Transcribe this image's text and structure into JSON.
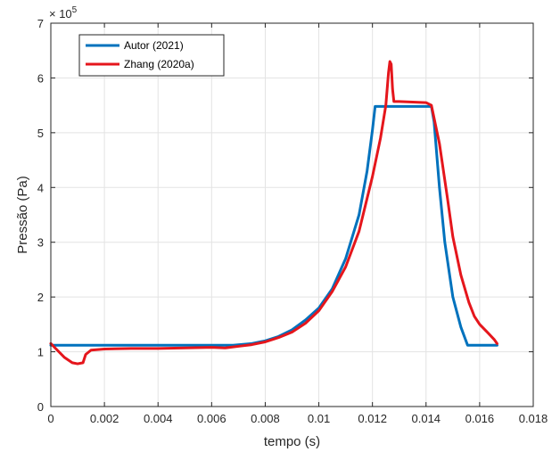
{
  "chart_data": {
    "type": "line",
    "xlabel": "tempo (s)",
    "ylabel": "Pressão (Pa)",
    "y_multiplier": "× 10",
    "y_multiplier_exp": "5",
    "xlim": [
      0,
      0.018
    ],
    "ylim": [
      0,
      7
    ],
    "x_ticks": [
      "0",
      "0.002",
      "0.004",
      "0.006",
      "0.008",
      "0.01",
      "0.012",
      "0.014",
      "0.016",
      "0.018"
    ],
    "y_ticks": [
      "0",
      "1",
      "2",
      "3",
      "4",
      "5",
      "6",
      "7"
    ],
    "grid": true,
    "legend_position": "top-left",
    "series": [
      {
        "name": "Autor (2021)",
        "color": "#0072BD",
        "points": [
          [
            0,
            1.12
          ],
          [
            0.002,
            1.12
          ],
          [
            0.004,
            1.12
          ],
          [
            0.006,
            1.12
          ],
          [
            0.0068,
            1.12
          ],
          [
            0.0075,
            1.15
          ],
          [
            0.008,
            1.2
          ],
          [
            0.0085,
            1.28
          ],
          [
            0.009,
            1.4
          ],
          [
            0.0095,
            1.58
          ],
          [
            0.01,
            1.8
          ],
          [
            0.0105,
            2.15
          ],
          [
            0.011,
            2.7
          ],
          [
            0.0115,
            3.5
          ],
          [
            0.0118,
            4.3
          ],
          [
            0.012,
            5.05
          ],
          [
            0.0121,
            5.48
          ],
          [
            0.0123,
            5.48
          ],
          [
            0.013,
            5.48
          ],
          [
            0.0138,
            5.48
          ],
          [
            0.0142,
            5.48
          ],
          [
            0.0143,
            5.2
          ],
          [
            0.0145,
            4.0
          ],
          [
            0.0147,
            3.0
          ],
          [
            0.015,
            2.0
          ],
          [
            0.0153,
            1.45
          ],
          [
            0.01555,
            1.12
          ],
          [
            0.0162,
            1.12
          ],
          [
            0.01665,
            1.12
          ]
        ]
      },
      {
        "name": "Zhang (2020a)",
        "color": "#E5161C",
        "points": [
          [
            0,
            1.15
          ],
          [
            0.0002,
            1.05
          ],
          [
            0.0005,
            0.9
          ],
          [
            0.0008,
            0.8
          ],
          [
            0.001,
            0.78
          ],
          [
            0.0012,
            0.8
          ],
          [
            0.0013,
            0.95
          ],
          [
            0.0015,
            1.03
          ],
          [
            0.002,
            1.05
          ],
          [
            0.003,
            1.06
          ],
          [
            0.004,
            1.06
          ],
          [
            0.005,
            1.07
          ],
          [
            0.006,
            1.08
          ],
          [
            0.0065,
            1.07
          ],
          [
            0.007,
            1.1
          ],
          [
            0.0075,
            1.13
          ],
          [
            0.008,
            1.18
          ],
          [
            0.0085,
            1.26
          ],
          [
            0.009,
            1.36
          ],
          [
            0.0095,
            1.52
          ],
          [
            0.01,
            1.75
          ],
          [
            0.0105,
            2.1
          ],
          [
            0.011,
            2.55
          ],
          [
            0.0115,
            3.2
          ],
          [
            0.012,
            4.2
          ],
          [
            0.0123,
            4.9
          ],
          [
            0.0125,
            5.5
          ],
          [
            0.0126,
            6.1
          ],
          [
            0.01265,
            6.3
          ],
          [
            0.0127,
            6.25
          ],
          [
            0.01275,
            5.8
          ],
          [
            0.0128,
            5.57
          ],
          [
            0.013,
            5.57
          ],
          [
            0.0135,
            5.56
          ],
          [
            0.014,
            5.55
          ],
          [
            0.0142,
            5.5
          ],
          [
            0.0145,
            4.8
          ],
          [
            0.0148,
            3.8
          ],
          [
            0.015,
            3.1
          ],
          [
            0.0153,
            2.4
          ],
          [
            0.0156,
            1.9
          ],
          [
            0.0158,
            1.65
          ],
          [
            0.016,
            1.5
          ],
          [
            0.0163,
            1.35
          ],
          [
            0.01655,
            1.22
          ],
          [
            0.01665,
            1.15
          ]
        ]
      }
    ]
  }
}
